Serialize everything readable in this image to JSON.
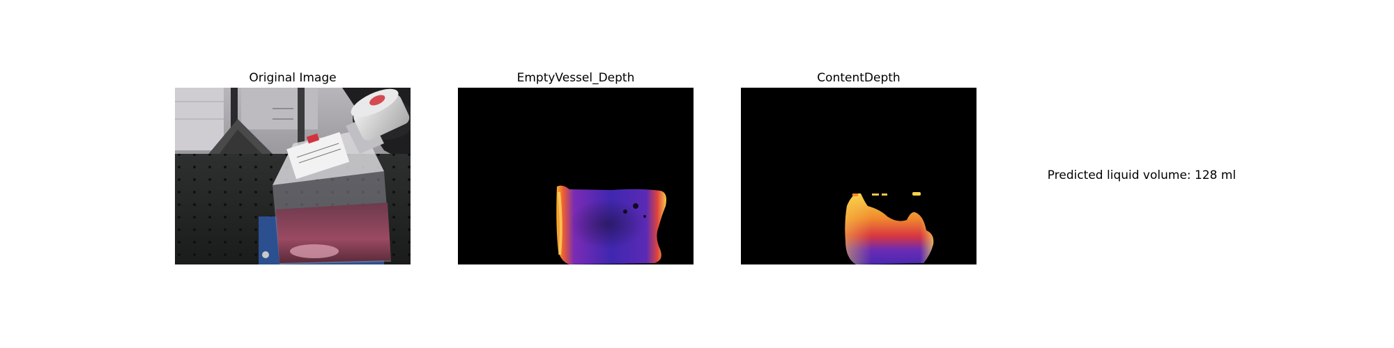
{
  "panels": [
    {
      "title": "Original Image"
    },
    {
      "title": "EmptyVessel_Depth"
    },
    {
      "title": "ContentDepth"
    }
  ],
  "prediction": {
    "text": "Predicted liquid volume: 128 ml"
  },
  "colors": {
    "background": "#ffffff",
    "depth_background": "#000000",
    "colormap_low": "#3b1fa8",
    "colormap_mid": "#e0403a",
    "colormap_high": "#f8d94a",
    "liquid": "#8a3b52"
  }
}
